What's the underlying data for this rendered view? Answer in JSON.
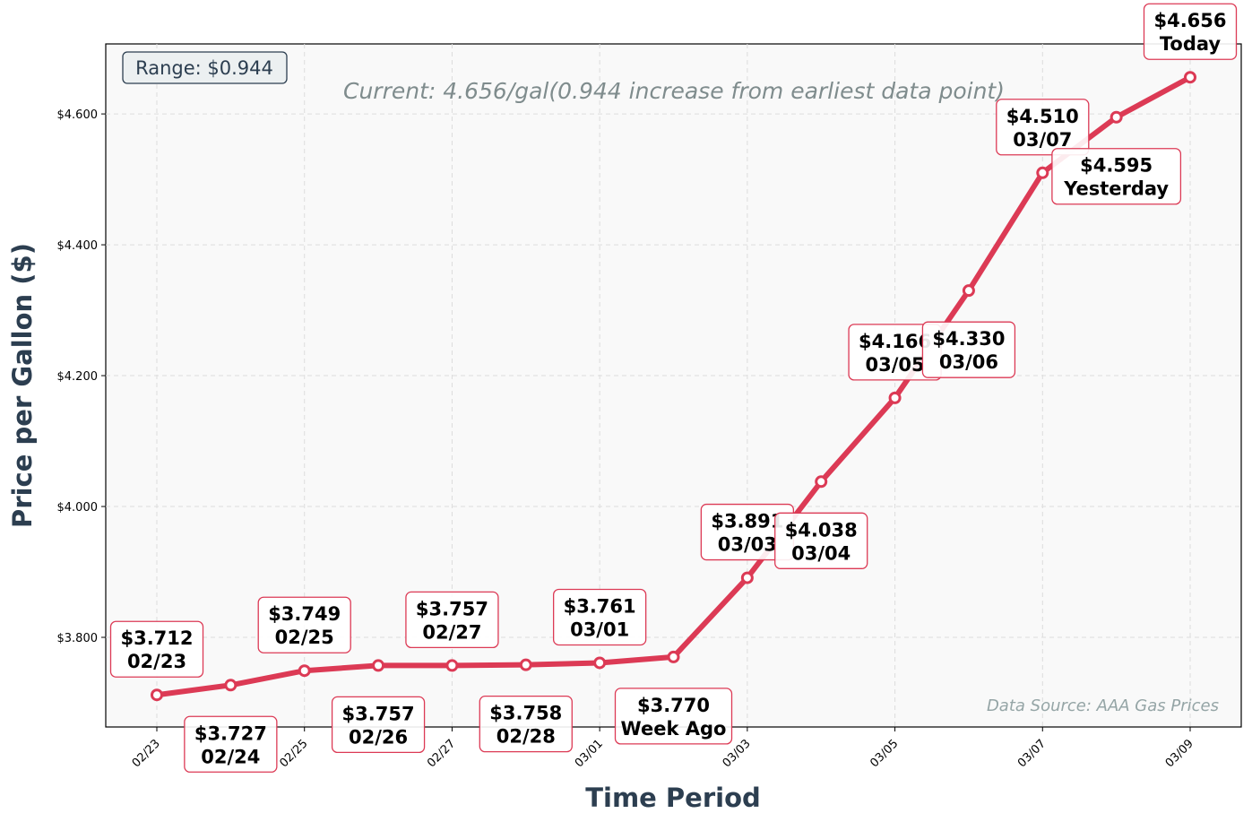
{
  "chart_data": {
    "type": "line",
    "title": "",
    "xlabel": "Time Period",
    "ylabel": "Price per Gallon ($)",
    "x": [
      "02/23",
      "02/24",
      "02/25",
      "02/26",
      "02/27",
      "02/28",
      "03/01",
      "03/02",
      "03/03",
      "03/04",
      "03/05",
      "03/06",
      "03/07",
      "03/08",
      "03/09"
    ],
    "values": [
      3.712,
      3.727,
      3.749,
      3.757,
      3.757,
      3.758,
      3.761,
      3.77,
      3.891,
      4.038,
      4.166,
      4.33,
      4.51,
      4.595,
      4.656
    ],
    "point_labels": [
      "$3.712\n02/23",
      "$3.727\n02/24",
      "$3.749\n02/25",
      "$3.757\n02/26",
      "$3.757\n02/27",
      "$3.758\n02/28",
      "$3.761\n03/01",
      "$3.770\nWeek Ago",
      "$3.891\n03/03",
      "$4.038\n03/04",
      "$4.166\n03/05",
      "$4.330\n03/06",
      "$4.510\n03/07",
      "$4.595\nYesterday",
      "$4.656\nToday"
    ],
    "xticks": [
      "02/23",
      "02/25",
      "02/27",
      "03/01",
      "03/03",
      "03/05",
      "03/07",
      "03/09"
    ],
    "yticks": [
      3.8,
      4.0,
      4.2,
      4.4,
      4.6
    ],
    "ytick_labels": [
      "$3.800",
      "$4.000",
      "$4.200",
      "$4.400",
      "$4.600"
    ],
    "ylim": [
      3.663,
      4.707
    ],
    "grid": true,
    "line_color": "#dc3a55",
    "annotations": {
      "range": "Range: $0.944",
      "current": "Current: 4.656/gal(0.944 increase from earliest data point)",
      "source": "Data Source: AAA Gas Prices"
    }
  }
}
